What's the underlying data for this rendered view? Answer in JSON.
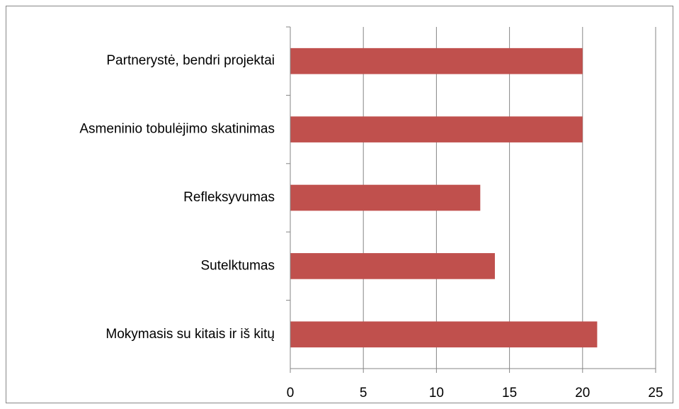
{
  "chart_data": {
    "type": "barh",
    "categories": [
      "Partnerystė, bendri projektai",
      "Asmeninio tobulėjimo skatinimas",
      "Refleksyvumas",
      "Sutelktumas",
      "Mokymasis su kitais ir iš kitų"
    ],
    "values": [
      20,
      20,
      13,
      14,
      21
    ],
    "color": "#c0504d",
    "xlim": [
      0,
      25
    ],
    "xticks": [
      0,
      5,
      10,
      15,
      20,
      25
    ],
    "grid": true
  }
}
